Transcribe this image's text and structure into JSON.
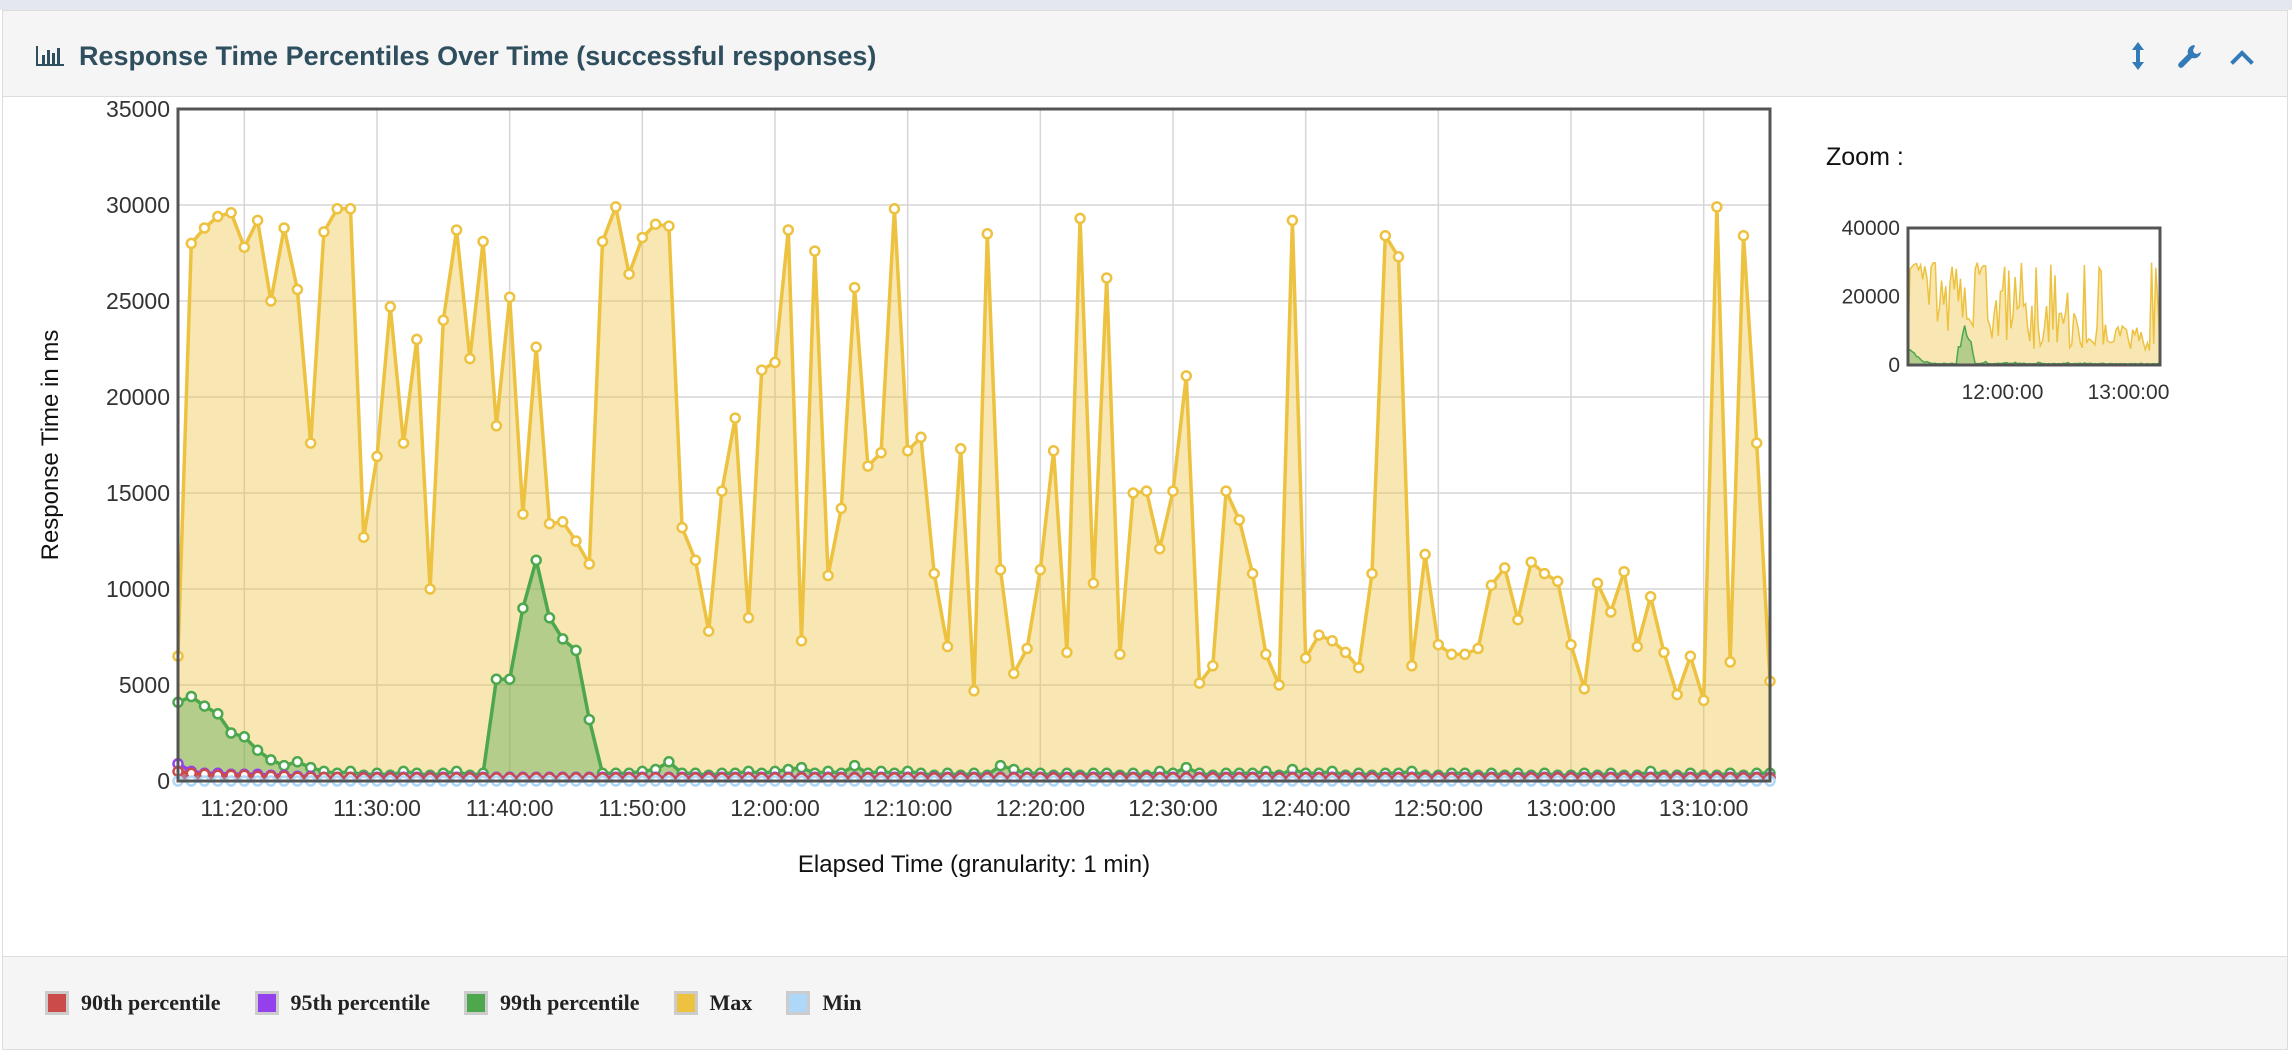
{
  "panel": {
    "title": "Response Time Percentiles Over Time (successful responses)",
    "title_icon": "bar-chart-icon",
    "tools": [
      {
        "name": "resize-icon"
      },
      {
        "name": "settings-wrench-icon"
      },
      {
        "name": "collapse-chevron-up-icon"
      }
    ]
  },
  "zoom": {
    "label": "Zoom :",
    "y_ticks": [
      "40000",
      "20000",
      "0"
    ],
    "x_ticks": [
      "12:00:00",
      "13:00:00"
    ]
  },
  "legend": [
    {
      "label": "90th percentile",
      "color": "#cb4b4b"
    },
    {
      "label": "95th percentile",
      "color": "#9440ed"
    },
    {
      "label": "99th percentile",
      "color": "#4da74d"
    },
    {
      "label": "Max",
      "color": "#edc240"
    },
    {
      "label": "Min",
      "color": "#afd8f8"
    }
  ],
  "chart_data": {
    "type": "area",
    "title": "",
    "xlabel": "Elapsed Time (granularity: 1 min)",
    "ylabel": "Response Time in ms",
    "ylim": [
      0,
      35000
    ],
    "y_ticks": [
      "35000",
      "30000",
      "25000",
      "20000",
      "15000",
      "10000",
      "5000",
      "0"
    ],
    "x_ticks": [
      "11:20:00",
      "11:30:00",
      "11:40:00",
      "11:50:00",
      "12:00:00",
      "12:10:00",
      "12:20:00",
      "12:30:00",
      "12:40:00",
      "12:50:00",
      "13:00:00",
      "13:10:00"
    ],
    "x_start": "11:15:00",
    "x_step_minutes": 1,
    "grid": true,
    "legend_position": "bottom",
    "series": [
      {
        "name": "Max",
        "color": "#edc240",
        "values": [
          6500,
          28000,
          28800,
          29400,
          29600,
          27800,
          29200,
          25000,
          28800,
          25600,
          17600,
          28600,
          29800,
          29800,
          12700,
          16900,
          24700,
          17600,
          23000,
          10000,
          24000,
          28700,
          22000,
          28100,
          18500,
          25200,
          13900,
          22600,
          13400,
          13500,
          12500,
          11300,
          28100,
          29900,
          26400,
          28300,
          29000,
          28900,
          13200,
          11500,
          7800,
          15100,
          18900,
          8500,
          21400,
          21800,
          28700,
          7300,
          27600,
          10700,
          14200,
          25700,
          16400,
          17100,
          29800,
          17200,
          17900,
          10800,
          7000,
          17300,
          4700,
          28500,
          11000,
          5600,
          6900,
          11000,
          17200,
          6700,
          29300,
          10300,
          26200,
          6600,
          15000,
          15100,
          12100,
          15100,
          21100,
          5100,
          6000,
          15100,
          13600,
          10800,
          6600,
          5000,
          29200,
          6400,
          7600,
          7300,
          6700,
          5900,
          10800,
          28400,
          27300,
          6000,
          11800,
          7100,
          6600,
          6600,
          6900,
          10200,
          11100,
          8400,
          11400,
          10800,
          10400,
          7100,
          4800,
          10300,
          8800,
          10900,
          7000,
          9600,
          6700,
          4500,
          6500,
          4200,
          29900,
          6200,
          28400,
          17600,
          5200
        ]
      },
      {
        "name": "99th percentile",
        "color": "#4da74d",
        "values": [
          4100,
          4400,
          3900,
          3500,
          2500,
          2300,
          1600,
          1100,
          800,
          1000,
          700,
          500,
          400,
          500,
          300,
          400,
          300,
          500,
          400,
          300,
          400,
          500,
          300,
          400,
          5300,
          5300,
          9000,
          11500,
          8500,
          7400,
          6800,
          3200,
          400,
          400,
          400,
          500,
          600,
          1000,
          400,
          400,
          300,
          400,
          400,
          500,
          400,
          500,
          600,
          700,
          400,
          500,
          400,
          800,
          400,
          500,
          400,
          500,
          400,
          300,
          400,
          300,
          400,
          300,
          800,
          600,
          400,
          400,
          300,
          400,
          300,
          400,
          400,
          300,
          400,
          300,
          500,
          400,
          700,
          400,
          300,
          400,
          400,
          400,
          500,
          300,
          600,
          400,
          400,
          500,
          300,
          400,
          300,
          400,
          400,
          500,
          300,
          300,
          400,
          400,
          300,
          400,
          300,
          400,
          300,
          400,
          300,
          300,
          400,
          300,
          400,
          300,
          300,
          500,
          300,
          300,
          400,
          300,
          300,
          400,
          300,
          400,
          400
        ]
      },
      {
        "name": "95th percentile",
        "color": "#9440ed",
        "values": [
          900,
          500,
          400,
          400,
          350,
          350,
          350,
          300,
          300,
          250,
          250,
          200,
          200,
          200,
          200,
          200,
          200,
          200,
          200,
          200,
          200,
          200,
          200,
          200,
          200,
          200,
          200,
          200,
          200,
          200,
          200,
          200,
          200,
          200,
          200,
          200,
          200,
          200,
          200,
          200,
          200,
          200,
          200,
          200,
          200,
          200,
          200,
          200,
          200,
          200,
          200,
          200,
          200,
          200,
          200,
          200,
          200,
          200,
          200,
          200,
          200,
          200,
          200,
          200,
          200,
          200,
          200,
          200,
          200,
          200,
          200,
          200,
          200,
          200,
          200,
          200,
          200,
          200,
          200,
          200,
          200,
          200,
          200,
          200,
          200,
          200,
          200,
          200,
          200,
          200,
          200,
          200,
          200,
          200,
          200,
          200,
          200,
          200,
          200,
          200,
          200,
          200,
          200,
          200,
          200,
          200,
          200,
          200,
          200,
          200,
          200,
          200,
          200,
          200,
          200,
          200,
          200,
          200,
          200,
          200,
          200
        ]
      },
      {
        "name": "90th percentile",
        "color": "#cb4b4b",
        "values": [
          500,
          400,
          350,
          300,
          300,
          300,
          250,
          250,
          250,
          200,
          200,
          180,
          180,
          180,
          160,
          160,
          160,
          160,
          160,
          160,
          160,
          160,
          160,
          160,
          160,
          160,
          160,
          160,
          160,
          160,
          160,
          160,
          160,
          160,
          160,
          160,
          160,
          160,
          160,
          160,
          160,
          160,
          160,
          160,
          160,
          160,
          160,
          160,
          160,
          160,
          160,
          160,
          160,
          160,
          160,
          160,
          160,
          160,
          160,
          160,
          160,
          160,
          160,
          160,
          160,
          160,
          160,
          160,
          160,
          160,
          160,
          160,
          160,
          160,
          160,
          160,
          160,
          160,
          160,
          160,
          160,
          160,
          160,
          160,
          160,
          160,
          160,
          160,
          160,
          160,
          160,
          160,
          160,
          160,
          160,
          160,
          160,
          160,
          160,
          160,
          160,
          160,
          160,
          160,
          160,
          160,
          160,
          160,
          160,
          160,
          160,
          160,
          160,
          160,
          160,
          160,
          160,
          160,
          160,
          160,
          160
        ]
      },
      {
        "name": "Min",
        "color": "#afd8f8",
        "values": [
          0,
          0,
          0,
          0,
          0,
          0,
          0,
          0,
          0,
          0,
          0,
          0,
          0,
          0,
          0,
          0,
          0,
          0,
          0,
          0,
          0,
          0,
          0,
          0,
          0,
          0,
          0,
          0,
          0,
          0,
          0,
          0,
          0,
          0,
          0,
          0,
          0,
          0,
          0,
          0,
          0,
          0,
          0,
          0,
          0,
          0,
          0,
          0,
          0,
          0,
          0,
          0,
          0,
          0,
          0,
          0,
          0,
          0,
          0,
          0,
          0,
          0,
          0,
          0,
          0,
          0,
          0,
          0,
          0,
          0,
          0,
          0,
          0,
          0,
          0,
          0,
          0,
          0,
          0,
          0,
          0,
          0,
          0,
          0,
          0,
          0,
          0,
          0,
          0,
          0,
          0,
          0,
          0,
          0,
          0,
          0,
          0,
          0,
          0,
          0,
          0,
          0,
          0,
          0,
          0,
          0,
          0,
          0,
          0,
          0,
          0,
          0,
          0,
          0,
          0,
          0,
          0,
          0,
          0,
          0,
          0
        ]
      }
    ]
  }
}
